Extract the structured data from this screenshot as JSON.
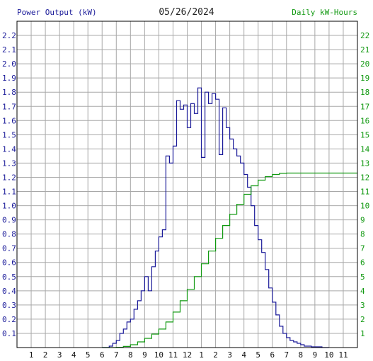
{
  "header": {
    "left_title": "Power Output (kW)",
    "date": "05/26/2024",
    "right_title": "Daily kW-Hours"
  },
  "colors": {
    "power": "#1a1a99",
    "energy": "#119911",
    "grid": "#a8a8a8",
    "frame": "#000000"
  },
  "chart_data": {
    "type": "line",
    "x_tick_labels": [
      "1",
      "2",
      "3",
      "4",
      "5",
      "6",
      "7",
      "8",
      "9",
      "10",
      "11",
      "12",
      "1",
      "2",
      "3",
      "4",
      "5",
      "6",
      "7",
      "8",
      "9",
      "10",
      "11"
    ],
    "left_axis": {
      "label": "Power Output (kW)",
      "range": [
        0,
        2.3
      ],
      "ticks": [
        "0.1",
        "0.2",
        "0.3",
        "0.4",
        "0.5",
        "0.6",
        "0.7",
        "0.8",
        "0.9",
        "1.0",
        "1.1",
        "1.2",
        "1.3",
        "1.4",
        "1.5",
        "1.6",
        "1.7",
        "1.8",
        "1.9",
        "2.0",
        "2.1",
        "2.2"
      ]
    },
    "right_axis": {
      "label": "Daily kW-Hours",
      "range": [
        0,
        23
      ],
      "ticks": [
        "1",
        "2",
        "3",
        "4",
        "5",
        "6",
        "7",
        "8",
        "9",
        "10",
        "11",
        "12",
        "13",
        "14",
        "15",
        "16",
        "17",
        "18",
        "19",
        "20",
        "21",
        "22"
      ]
    },
    "grid": true,
    "series": [
      {
        "name": "Power Output (kW)",
        "axis": "left",
        "step": true,
        "x": [
          6.0,
          6.5,
          6.75,
          7.0,
          7.25,
          7.5,
          7.75,
          8.0,
          8.25,
          8.5,
          8.75,
          9.0,
          9.25,
          9.5,
          9.75,
          10.0,
          10.25,
          10.5,
          10.75,
          11.0,
          11.25,
          11.5,
          11.75,
          12.0,
          12.25,
          12.5,
          12.75,
          13.0,
          13.25,
          13.5,
          13.75,
          14.0,
          14.25,
          14.5,
          14.75,
          15.0,
          15.25,
          15.5,
          15.75,
          16.0,
          16.25,
          16.5,
          16.75,
          17.0,
          17.25,
          17.5,
          17.75,
          18.0,
          18.25,
          18.5,
          18.75,
          19.0,
          19.25,
          19.5,
          19.75,
          20.0,
          20.25,
          20.5,
          20.75,
          21.0,
          21.5,
          22.0
        ],
        "y": [
          0.0,
          0.01,
          0.03,
          0.05,
          0.1,
          0.13,
          0.18,
          0.2,
          0.27,
          0.33,
          0.4,
          0.5,
          0.4,
          0.57,
          0.68,
          0.78,
          0.83,
          1.35,
          1.3,
          1.42,
          1.74,
          1.68,
          1.71,
          1.55,
          1.72,
          1.65,
          1.83,
          1.34,
          1.8,
          1.72,
          1.79,
          1.75,
          1.36,
          1.69,
          1.55,
          1.47,
          1.4,
          1.35,
          1.3,
          1.22,
          1.13,
          1.0,
          0.86,
          0.76,
          0.67,
          0.55,
          0.42,
          0.32,
          0.23,
          0.15,
          0.1,
          0.07,
          0.05,
          0.04,
          0.03,
          0.02,
          0.01,
          0.01,
          0.005,
          0.005,
          0.0,
          0.0
        ]
      },
      {
        "name": "Daily kW-Hours",
        "axis": "right",
        "step": true,
        "x": [
          6.0,
          7.0,
          7.5,
          8.0,
          8.5,
          9.0,
          9.5,
          10.0,
          10.5,
          11.0,
          11.5,
          12.0,
          12.5,
          13.0,
          13.5,
          14.0,
          14.5,
          15.0,
          15.5,
          16.0,
          16.5,
          17.0,
          17.5,
          18.0,
          18.5,
          19.0,
          19.5,
          20.0,
          21.0,
          22.0,
          23.0
        ],
        "y": [
          0.0,
          0.02,
          0.08,
          0.2,
          0.4,
          0.65,
          0.95,
          1.3,
          1.8,
          2.5,
          3.3,
          4.1,
          5.0,
          5.9,
          6.8,
          7.7,
          8.6,
          9.4,
          10.1,
          10.8,
          11.4,
          11.8,
          12.05,
          12.2,
          12.28,
          12.3,
          12.3,
          12.3,
          12.3,
          12.3,
          12.3
        ]
      }
    ]
  }
}
